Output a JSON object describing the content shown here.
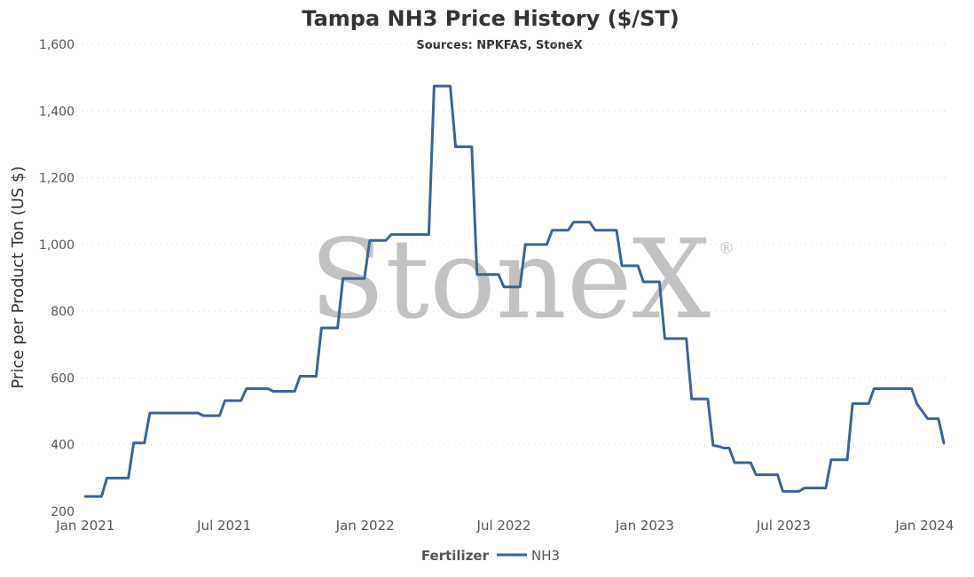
{
  "chart_data": {
    "type": "line",
    "title": "Tampa NH3 Price History ($/ST)",
    "subtitle": "Sources: NPKFAS, StoneX",
    "ylabel": "Price per Product Ton (US $)",
    "xlabel": "",
    "ylim": [
      200,
      1600
    ],
    "yticks": [
      200,
      400,
      600,
      800,
      1000,
      1200,
      1400,
      1600
    ],
    "ytick_labels": [
      "200",
      "400",
      "600",
      "800",
      "1,000",
      "1,200",
      "1,400",
      "1,600"
    ],
    "xlim": [
      "2020-12-27",
      "2024-02-02"
    ],
    "xticks": [
      "2021-01-01",
      "2021-07-01",
      "2022-01-01",
      "2022-07-01",
      "2023-01-01",
      "2023-07-01",
      "2024-01-01"
    ],
    "xtick_labels": [
      "Jan 2021",
      "Jul 2021",
      "Jan 2022",
      "Jul 2022",
      "Jan 2023",
      "Jul 2023",
      "Jan 2024"
    ],
    "grid": true,
    "legend": {
      "title": "Fertilizer",
      "placement": "bottom-center"
    },
    "watermark": "StoneX",
    "watermark_mark": "®",
    "series": [
      {
        "name": "NH3",
        "color": "#3b6496",
        "points": [
          [
            "2021-01-01",
            245
          ],
          [
            "2021-01-22",
            245
          ],
          [
            "2021-01-29",
            300
          ],
          [
            "2021-02-26",
            300
          ],
          [
            "2021-03-05",
            405
          ],
          [
            "2021-03-19",
            405
          ],
          [
            "2021-03-26",
            495
          ],
          [
            "2021-05-28",
            495
          ],
          [
            "2021-06-04",
            487
          ],
          [
            "2021-06-25",
            487
          ],
          [
            "2021-07-02",
            532
          ],
          [
            "2021-07-23",
            532
          ],
          [
            "2021-07-30",
            568
          ],
          [
            "2021-08-27",
            568
          ],
          [
            "2021-09-03",
            560
          ],
          [
            "2021-10-01",
            560
          ],
          [
            "2021-10-08",
            605
          ],
          [
            "2021-10-29",
            605
          ],
          [
            "2021-11-05",
            750
          ],
          [
            "2021-11-26",
            750
          ],
          [
            "2021-12-03",
            898
          ],
          [
            "2021-12-31",
            898
          ],
          [
            "2022-01-07",
            1012
          ],
          [
            "2022-01-28",
            1012
          ],
          [
            "2022-02-04",
            1030
          ],
          [
            "2022-03-25",
            1030
          ],
          [
            "2022-04-01",
            1475
          ],
          [
            "2022-04-22",
            1475
          ],
          [
            "2022-04-29",
            1293
          ],
          [
            "2022-05-20",
            1293
          ],
          [
            "2022-05-27",
            910
          ],
          [
            "2022-06-24",
            910
          ],
          [
            "2022-07-01",
            873
          ],
          [
            "2022-07-22",
            873
          ],
          [
            "2022-07-29",
            1000
          ],
          [
            "2022-08-26",
            1000
          ],
          [
            "2022-09-02",
            1043
          ],
          [
            "2022-09-23",
            1043
          ],
          [
            "2022-09-30",
            1067
          ],
          [
            "2022-10-21",
            1067
          ],
          [
            "2022-10-28",
            1043
          ],
          [
            "2022-11-25",
            1043
          ],
          [
            "2022-12-02",
            936
          ],
          [
            "2022-12-23",
            936
          ],
          [
            "2022-12-30",
            888
          ],
          [
            "2023-01-20",
            888
          ],
          [
            "2023-01-27",
            718
          ],
          [
            "2023-02-24",
            718
          ],
          [
            "2023-03-03",
            537
          ],
          [
            "2023-03-24",
            537
          ],
          [
            "2023-03-31",
            398
          ],
          [
            "2023-04-07",
            395
          ],
          [
            "2023-04-14",
            390
          ],
          [
            "2023-04-21",
            390
          ],
          [
            "2023-04-28",
            346
          ],
          [
            "2023-05-19",
            346
          ],
          [
            "2023-05-26",
            310
          ],
          [
            "2023-06-23",
            310
          ],
          [
            "2023-06-30",
            260
          ],
          [
            "2023-07-21",
            260
          ],
          [
            "2023-07-28",
            270
          ],
          [
            "2023-08-25",
            270
          ],
          [
            "2023-09-01",
            355
          ],
          [
            "2023-09-22",
            355
          ],
          [
            "2023-09-29",
            523
          ],
          [
            "2023-10-20",
            523
          ],
          [
            "2023-10-27",
            568
          ],
          [
            "2023-12-15",
            568
          ],
          [
            "2023-12-22",
            522
          ],
          [
            "2023-12-29",
            500
          ],
          [
            "2024-01-05",
            478
          ],
          [
            "2024-01-19",
            478
          ],
          [
            "2024-01-26",
            405
          ]
        ]
      }
    ]
  }
}
